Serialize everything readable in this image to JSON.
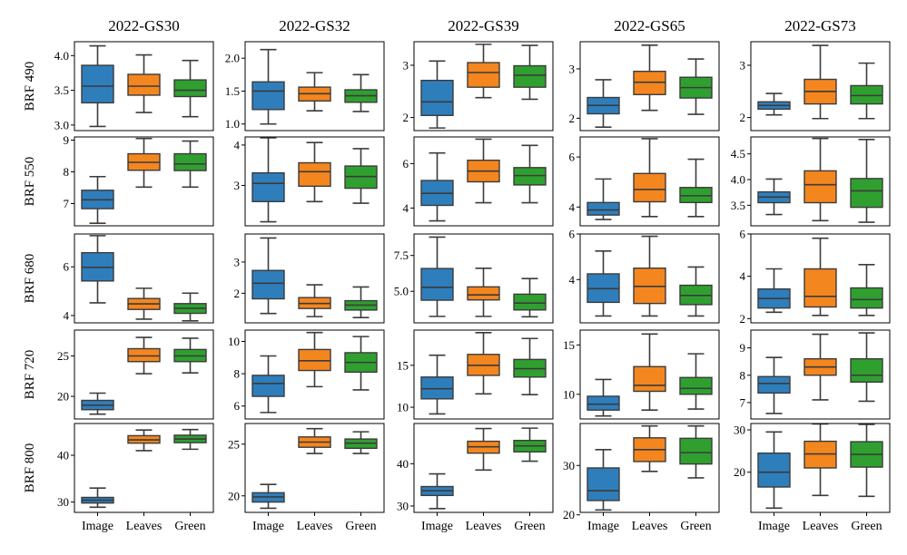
{
  "chart_data": {
    "type": "box",
    "categories": [
      "Image",
      "Leaves",
      "Green"
    ],
    "colors": {
      "Image": "#2f7ebc",
      "Leaves": "#f4861f",
      "Green": "#2fa02f"
    },
    "columns": [
      "2022-GS30",
      "2022-GS32",
      "2022-GS39",
      "2022-GS65",
      "2022-GS73"
    ],
    "rows": [
      "BRF 490",
      "BRF 550",
      "BRF 680",
      "BRF 720",
      "BRF 800"
    ],
    "panels": [
      [
        {
          "ylim": [
            2.92,
            4.2
          ],
          "ticks": [
            "3.0",
            "3.5",
            "4.0"
          ],
          "boxes": [
            [
              2.98,
              3.32,
              3.56,
              3.86,
              4.14
            ],
            [
              3.18,
              3.43,
              3.56,
              3.73,
              4.01
            ],
            [
              3.12,
              3.41,
              3.5,
              3.65,
              3.93
            ]
          ]
        },
        {
          "ylim": [
            0.9,
            2.25
          ],
          "ticks": [
            "1.0",
            "1.5",
            "2.0"
          ],
          "boxes": [
            [
              1.0,
              1.22,
              1.5,
              1.64,
              2.13
            ],
            [
              1.2,
              1.35,
              1.46,
              1.56,
              1.78
            ],
            [
              1.19,
              1.33,
              1.43,
              1.52,
              1.75
            ]
          ]
        },
        {
          "ylim": [
            1.75,
            3.45
          ],
          "ticks": [
            "2",
            "3"
          ],
          "boxes": [
            [
              1.8,
              2.04,
              2.3,
              2.71,
              3.08
            ],
            [
              2.38,
              2.58,
              2.86,
              3.05,
              3.4
            ],
            [
              2.35,
              2.58,
              2.81,
              2.99,
              3.38
            ]
          ]
        },
        {
          "ylim": [
            1.75,
            3.55
          ],
          "ticks": [
            "2",
            "3"
          ],
          "boxes": [
            [
              1.82,
              2.09,
              2.26,
              2.42,
              2.78
            ],
            [
              2.16,
              2.48,
              2.73,
              2.95,
              3.48
            ],
            [
              2.08,
              2.41,
              2.62,
              2.83,
              3.2
            ]
          ]
        },
        {
          "ylim": [
            1.75,
            3.45
          ],
          "ticks": [
            "2",
            "3"
          ],
          "boxes": [
            [
              2.05,
              2.16,
              2.23,
              2.3,
              2.46
            ],
            [
              1.98,
              2.26,
              2.5,
              2.73,
              3.38
            ],
            [
              1.98,
              2.26,
              2.42,
              2.61,
              3.04
            ]
          ]
        }
      ],
      [
        {
          "ylim": [
            6.3,
            9.1
          ],
          "ticks": [
            "7",
            "8",
            "9"
          ],
          "boxes": [
            [
              6.38,
              6.84,
              7.12,
              7.42,
              7.85
            ],
            [
              7.52,
              8.05,
              8.3,
              8.57,
              9.05
            ],
            [
              7.52,
              8.04,
              8.25,
              8.57,
              8.97
            ]
          ]
        },
        {
          "ylim": [
            2.0,
            4.2
          ],
          "ticks": [
            "3",
            "4"
          ],
          "boxes": [
            [
              2.1,
              2.6,
              3.05,
              3.31,
              4.18
            ],
            [
              2.6,
              2.98,
              3.34,
              3.56,
              4.06
            ],
            [
              2.56,
              2.93,
              3.22,
              3.48,
              3.91
            ]
          ]
        },
        {
          "ylim": [
            3.2,
            7.2
          ],
          "ticks": [
            "4",
            "6"
          ],
          "boxes": [
            [
              3.42,
              4.12,
              4.66,
              5.24,
              6.48
            ],
            [
              4.24,
              5.18,
              5.66,
              6.15,
              7.1
            ],
            [
              4.24,
              5.04,
              5.46,
              5.82,
              6.82
            ]
          ]
        },
        {
          "ylim": [
            3.25,
            6.8
          ],
          "ticks": [
            "4",
            "6"
          ],
          "boxes": [
            [
              3.5,
              3.68,
              3.88,
              4.18,
              5.12
            ],
            [
              3.62,
              4.21,
              4.7,
              5.34,
              6.73
            ],
            [
              3.62,
              4.18,
              4.45,
              4.78,
              5.91
            ]
          ]
        },
        {
          "ylim": [
            3.1,
            4.83
          ],
          "ticks": [
            "3.5",
            "4.0",
            "4.5"
          ],
          "boxes": [
            [
              3.32,
              3.55,
              3.66,
              3.76,
              4.01
            ],
            [
              3.2,
              3.55,
              3.9,
              4.17,
              4.8
            ],
            [
              3.17,
              3.46,
              3.78,
              4.02,
              4.78
            ]
          ]
        }
      ],
      [
        {
          "ylim": [
            3.7,
            7.35
          ],
          "ticks": [
            "4",
            "6"
          ],
          "boxes": [
            [
              4.52,
              5.42,
              5.98,
              6.58,
              7.28
            ],
            [
              3.85,
              4.25,
              4.48,
              4.7,
              5.12
            ],
            [
              3.78,
              4.09,
              4.3,
              4.49,
              4.92
            ]
          ]
        },
        {
          "ylim": [
            1.05,
            3.9
          ],
          "ticks": [
            "2",
            "3"
          ],
          "boxes": [
            [
              1.35,
              1.82,
              2.32,
              2.73,
              3.77
            ],
            [
              1.25,
              1.51,
              1.67,
              1.86,
              2.27
            ],
            [
              1.22,
              1.46,
              1.62,
              1.76,
              2.2
            ]
          ]
        },
        {
          "ylim": [
            2.8,
            9.0
          ],
          "ticks": [
            "5.0",
            "7.5"
          ],
          "boxes": [
            [
              3.25,
              4.38,
              5.28,
              6.59,
              8.78
            ],
            [
              3.25,
              4.4,
              4.75,
              5.31,
              6.61
            ],
            [
              3.22,
              3.7,
              4.18,
              4.8,
              5.89
            ]
          ]
        },
        {
          "ylim": [
            2.1,
            6.0
          ],
          "ticks": [
            "4",
            "6"
          ],
          "boxes": [
            [
              2.4,
              3.0,
              3.6,
              4.25,
              5.25
            ],
            [
              2.4,
              2.95,
              3.7,
              4.5,
              5.9
            ],
            [
              2.4,
              2.9,
              3.3,
              3.75,
              4.55
            ]
          ]
        },
        {
          "ylim": [
            1.8,
            6.0
          ],
          "ticks": [
            "2",
            "4",
            "6"
          ],
          "boxes": [
            [
              2.3,
              2.5,
              2.95,
              3.4,
              4.35
            ],
            [
              2.15,
              2.55,
              3.05,
              4.35,
              5.8
            ],
            [
              2.15,
              2.5,
              2.9,
              3.45,
              4.55
            ]
          ]
        }
      ],
      [
        {
          "ylim": [
            17.2,
            28.2
          ],
          "ticks": [
            "20",
            "25"
          ],
          "boxes": [
            [
              17.8,
              18.35,
              18.9,
              19.5,
              20.4
            ],
            [
              22.8,
              24.3,
              25.0,
              25.9,
              27.3
            ],
            [
              22.9,
              24.3,
              25.0,
              25.8,
              27.2
            ]
          ]
        },
        {
          "ylim": [
            5.2,
            10.7
          ],
          "ticks": [
            "6",
            "8",
            "10"
          ],
          "boxes": [
            [
              5.6,
              6.6,
              7.4,
              7.9,
              9.1
            ],
            [
              7.2,
              8.2,
              8.8,
              9.5,
              10.55
            ],
            [
              7.0,
              8.1,
              8.7,
              9.3,
              10.3
            ]
          ]
        },
        {
          "ylim": [
            8.6,
            19.2
          ],
          "ticks": [
            "10",
            "15"
          ],
          "boxes": [
            [
              9.2,
              11.0,
              12.2,
              13.6,
              16.2
            ],
            [
              11.6,
              13.8,
              15.0,
              16.3,
              18.9
            ],
            [
              11.5,
              13.6,
              14.6,
              15.7,
              18.2
            ]
          ]
        },
        {
          "ylim": [
            7.5,
            16.5
          ],
          "ticks": [
            "10",
            "15"
          ],
          "boxes": [
            [
              7.8,
              8.4,
              9.0,
              9.8,
              11.5
            ],
            [
              8.4,
              10.3,
              10.9,
              12.8,
              16.1
            ],
            [
              8.5,
              10.0,
              10.6,
              11.7,
              14.1
            ]
          ]
        },
        {
          "ylim": [
            6.4,
            9.65
          ],
          "ticks": [
            "7",
            "8",
            "9"
          ],
          "boxes": [
            [
              6.6,
              7.35,
              7.7,
              7.95,
              8.65
            ],
            [
              7.1,
              8.0,
              8.3,
              8.6,
              9.5
            ],
            [
              7.05,
              7.75,
              8.0,
              8.6,
              9.55
            ]
          ]
        }
      ],
      [
        {
          "ylim": [
            27.8,
            46.8
          ],
          "ticks": [
            "30",
            "40"
          ],
          "boxes": [
            [
              28.9,
              29.8,
              30.4,
              31.0,
              33.0
            ],
            [
              41.0,
              42.6,
              43.3,
              44.2,
              45.4
            ],
            [
              41.3,
              42.7,
              43.5,
              44.3,
              45.5
            ]
          ]
        },
        {
          "ylim": [
            18.4,
            27.0
          ],
          "ticks": [
            "20",
            "25"
          ],
          "boxes": [
            [
              18.8,
              19.4,
              19.9,
              20.3,
              21.1
            ],
            [
              24.1,
              24.7,
              25.2,
              25.7,
              26.5
            ],
            [
              24.1,
              24.6,
              25.1,
              25.5,
              26.2
            ]
          ]
        },
        {
          "ylim": [
            28.5,
            49.5
          ],
          "ticks": [
            "30",
            "40"
          ],
          "boxes": [
            [
              29.4,
              32.5,
              33.6,
              34.6,
              37.6
            ],
            [
              38.5,
              42.5,
              44.0,
              45.3,
              48.3
            ],
            [
              40.6,
              42.8,
              44.2,
              45.5,
              48.4
            ]
          ]
        },
        {
          "ylim": [
            20.5,
            38.5
          ],
          "ticks": [
            "20",
            "30"
          ],
          "boxes": [
            [
              21.0,
              22.9,
              24.9,
              29.5,
              33.2
            ],
            [
              28.8,
              30.8,
              33.2,
              35.6,
              38.0
            ],
            [
              27.5,
              30.3,
              32.6,
              35.5,
              38.0
            ]
          ]
        },
        {
          "ylim": [
            10.5,
            31.5
          ],
          "ticks": [
            "20",
            "30"
          ],
          "boxes": [
            [
              11.5,
              16.5,
              20.0,
              24.5,
              29.5
            ],
            [
              14.5,
              21.0,
              24.3,
              27.3,
              31.4
            ],
            [
              14.3,
              21.2,
              24.2,
              27.2,
              31.3
            ]
          ]
        }
      ]
    ]
  }
}
